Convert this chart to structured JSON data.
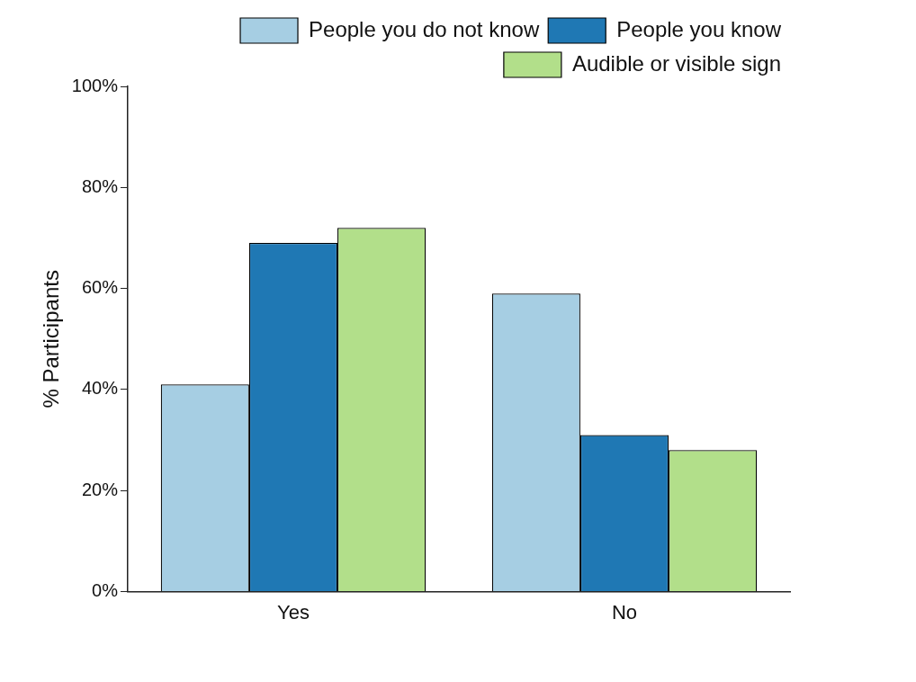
{
  "chart_data": {
    "type": "bar",
    "ylabel": "% Participants",
    "categories": [
      "Yes",
      "No"
    ],
    "series": [
      {
        "name": "People you do not know",
        "color": "#a6cee3",
        "values": [
          41,
          59
        ]
      },
      {
        "name": "People you know",
        "color": "#1f78b4",
        "values": [
          69,
          31
        ]
      },
      {
        "name": "Audible or visible sign",
        "color": "#b2df8a",
        "values": [
          72,
          28
        ]
      }
    ],
    "ylim": [
      0,
      100
    ],
    "yticks": [
      {
        "value": 0,
        "label": "0%"
      },
      {
        "value": 20,
        "label": "20%"
      },
      {
        "value": 40,
        "label": "40%"
      },
      {
        "value": 60,
        "label": "60%"
      },
      {
        "value": 80,
        "label": "80%"
      },
      {
        "value": 100,
        "label": "100%"
      }
    ],
    "grid": false,
    "legend": "top right"
  }
}
